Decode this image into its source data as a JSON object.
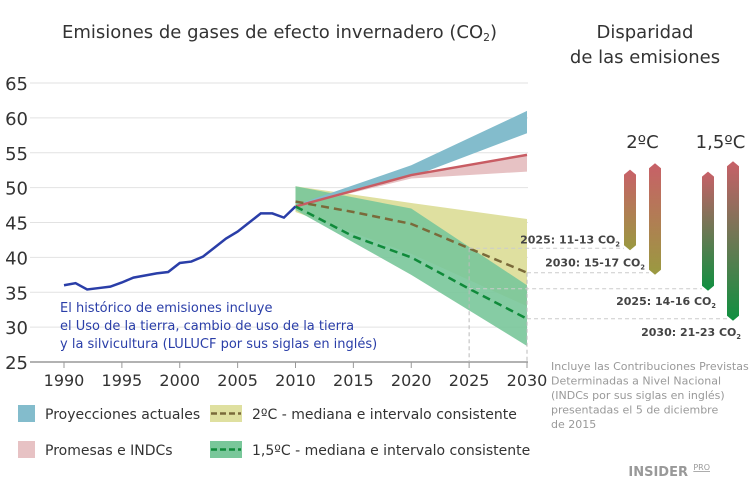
{
  "chart_data": {
    "type": "line",
    "title": "Emisiones de gases de efecto invernadero (CO",
    "title_sub": "2",
    "title_close": ")",
    "xlim": [
      1990,
      2030
    ],
    "ylim": [
      25,
      65
    ],
    "xticks": [
      1990,
      1995,
      2000,
      2005,
      2010,
      2015,
      2020,
      2025,
      2030
    ],
    "yticks": [
      25,
      30,
      35,
      40,
      45,
      50,
      55,
      60,
      65
    ],
    "grid": true,
    "historical": {
      "color": "#2a3ea8",
      "x": [
        1990,
        1991,
        1992,
        1993,
        1994,
        1995,
        1996,
        1997,
        1998,
        1999,
        2000,
        2001,
        2002,
        2003,
        2004,
        2005,
        2006,
        2007,
        2008,
        2009,
        2010
      ],
      "y": [
        36,
        36.3,
        35.4,
        35.6,
        35.8,
        36.4,
        37.1,
        37.4,
        37.7,
        37.9,
        39.2,
        39.4,
        40.1,
        41.4,
        42.7,
        43.7,
        45.0,
        46.3,
        46.3,
        45.7,
        47.3
      ]
    },
    "historical_note": [
      "El histórico de emisiones incluye",
      "el Uso de la tierra, cambio de uso de la tierra",
      "y la silvicultura (LULUCF por sus siglas en inglés)"
    ],
    "bands": [
      {
        "name": "2ºC - mediana e intervalo consistente",
        "color": "#dfe0a0",
        "x": [
          2010,
          2020,
          2030
        ],
        "low": [
          46.5,
          40.5,
          33
        ],
        "high": [
          50.2,
          47.8,
          45.5
        ],
        "median": [
          48,
          44.8,
          37.8
        ],
        "median_x": [
          2010,
          2015,
          2020,
          2025,
          2030
        ],
        "median_y": [
          48,
          46.5,
          44.8,
          41.3,
          37.8
        ],
        "median_color": "#7a6a3a"
      },
      {
        "name": "1,5ºC - mediana e intervalo consistente",
        "color": "#79c79a",
        "x": [
          2010,
          2020,
          2030
        ],
        "low": [
          46.8,
          37.5,
          27.3
        ],
        "high": [
          50.2,
          47,
          36
        ],
        "median_x": [
          2010,
          2015,
          2020,
          2025,
          2030
        ],
        "median_y": [
          47.3,
          43,
          40,
          35.5,
          31.2
        ],
        "median_color": "#0f8a3a"
      },
      {
        "name": "Proyecciones actuales",
        "color": "#83bccc",
        "x": [
          2010,
          2020,
          2030
        ],
        "low": [
          47.3,
          51.5,
          57.8
        ],
        "high": [
          47.5,
          53.2,
          61
        ]
      },
      {
        "name": "Promesas e INDCs",
        "color": "#e7c2c4",
        "x": [
          2010,
          2020,
          2030
        ],
        "low": [
          47.3,
          51.3,
          52.3
        ],
        "high": [
          47.3,
          51.9,
          54.7
        ],
        "line_y": [
          47.3,
          51.8,
          54.7
        ],
        "line_color": "#c85c63"
      }
    ],
    "gap_title": [
      "Disparidad",
      "de las emisiones"
    ],
    "gap_groups": [
      {
        "label": "2ºC",
        "bars": [
          {
            "year": 2025,
            "from": 52.3,
            "to": 41.3,
            "label": "2025: 11-13 CO",
            "sub": "2"
          },
          {
            "year": 2030,
            "from": 53.2,
            "to": 37.8,
            "label": "2030: 15-17 CO",
            "sub": "2"
          }
        ],
        "bottom_color": "#9a9a40"
      },
      {
        "label": "1,5ºC",
        "bars": [
          {
            "year": 2025,
            "from": 52.0,
            "to": 35.5,
            "label": "2025: 14-16 CO",
            "sub": "2"
          },
          {
            "year": 2030,
            "from": 53.5,
            "to": 31.2,
            "label": "2030: 21-23 CO",
            "sub": "2"
          }
        ],
        "bottom_color": "#0f9040"
      }
    ],
    "bar_top_color": "#c86068",
    "footnote": [
      "Incluye las Contribuciones Previstas",
      "Determinadas a Nivel Nacional",
      "(INDCs por sus siglas en inglés)",
      "presentadas el 5 de diciembre",
      "de 2015"
    ],
    "legend": [
      {
        "label": "Proyecciones actuales",
        "color": "#83bccc"
      },
      {
        "label": "Promesas e INDCs",
        "color": "#e7c2c4"
      },
      {
        "label": "2ºC - mediana e intervalo consistente",
        "color": "#dfe0a0",
        "dash": "#7a6a3a"
      },
      {
        "label": "1,5ºC - mediana e intervalo consistente",
        "color": "#79c79a",
        "dash": "#0f8a3a"
      }
    ],
    "legend_placement": "bottom"
  },
  "brand": {
    "name": "INSIDER",
    "suffix": "PRO"
  }
}
